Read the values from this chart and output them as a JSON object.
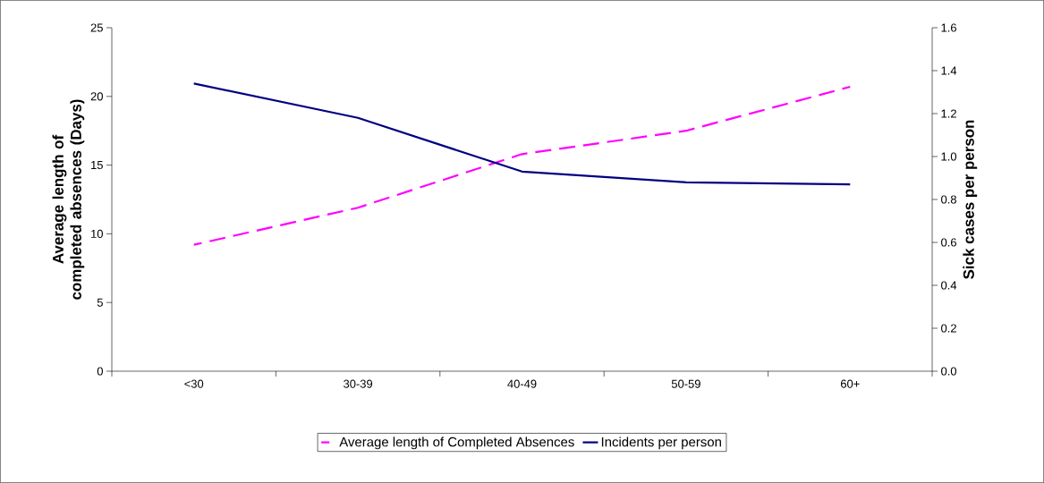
{
  "chart_data": {
    "type": "line",
    "categories": [
      "<30",
      "30-39",
      "40-49",
      "50-59",
      "60+"
    ],
    "series": [
      {
        "name": "Average length of Completed Absences",
        "color": "#ff00ff",
        "line_style": "dashed",
        "values": [
          9.2,
          11.9,
          15.8,
          17.5,
          20.7
        ]
      },
      {
        "name": "Incidents per person",
        "color": "#000080",
        "line_style": "solid",
        "axis": "y2",
        "values": [
          1.34,
          1.18,
          0.93,
          0.88,
          0.87
        ]
      }
    ],
    "ylabel": "Average length of completed absences (Days)",
    "y2label": "Sick cases per person",
    "ylim": [
      0,
      25
    ],
    "yticks": [
      0,
      5,
      10,
      15,
      20,
      25
    ],
    "y2lim": [
      0,
      1.6
    ],
    "y2ticks": [
      {
        "value": 0,
        "label": "0.0"
      },
      {
        "value": 0.2,
        "label": "0.2"
      },
      {
        "value": 0.4,
        "label": "0.4"
      },
      {
        "value": 0.6,
        "label": "0.6"
      },
      {
        "value": 0.8,
        "label": "0.8"
      },
      {
        "value": 1.0,
        "label": "1.0"
      },
      {
        "value": 1.2,
        "label": "1.2"
      },
      {
        "value": 1.4,
        "label": "1.4"
      },
      {
        "value": 1.6,
        "label": "1.6"
      }
    ],
    "legend": "bottom"
  }
}
